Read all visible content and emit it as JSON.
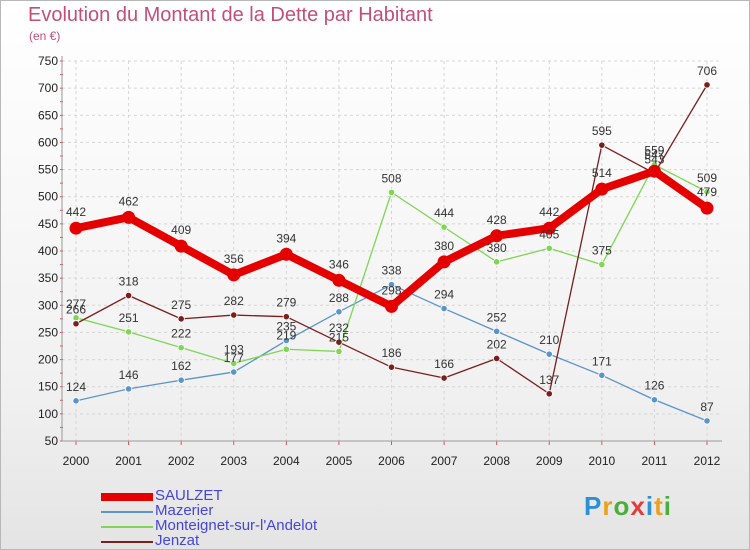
{
  "title": "Evolution du Montant de la Dette par Habitant",
  "subtitle": "(en €)",
  "logo": {
    "text": "Proxiti",
    "letters": [
      "P",
      "r",
      "o",
      "x",
      "i",
      "t",
      "i"
    ]
  },
  "chart_data": {
    "type": "line",
    "title": "Evolution du Montant de la Dette par Habitant",
    "ylabel": "(en €)",
    "xlabel": "",
    "x": [
      "2000",
      "2001",
      "2002",
      "2003",
      "2004",
      "2005",
      "2006",
      "2007",
      "2008",
      "2009",
      "2010",
      "2011",
      "2012"
    ],
    "ylim": [
      50,
      750
    ],
    "yticks": [
      50,
      100,
      150,
      200,
      250,
      300,
      350,
      400,
      450,
      500,
      550,
      600,
      650,
      700,
      750
    ],
    "grid": true,
    "series": [
      {
        "name": "SAULZET",
        "color": "#e50000",
        "values": [
          442,
          462,
          409,
          356,
          394,
          346,
          298,
          380,
          428,
          442,
          514,
          547,
          479
        ]
      },
      {
        "name": "Mazerier",
        "color": "#5b94c8",
        "values": [
          124,
          146,
          162,
          177,
          235,
          288,
          338,
          294,
          252,
          210,
          171,
          126,
          87
        ]
      },
      {
        "name": "Monteignet-sur-l'Andelot",
        "color": "#7fd655",
        "values": [
          277,
          251,
          222,
          193,
          219,
          215,
          508,
          444,
          380,
          405,
          375,
          559,
          509
        ]
      },
      {
        "name": "Jenzat",
        "color": "#7a1e1e",
        "values": [
          266,
          318,
          275,
          282,
          279,
          232,
          186,
          166,
          202,
          137,
          595,
          543,
          706
        ]
      }
    ]
  }
}
